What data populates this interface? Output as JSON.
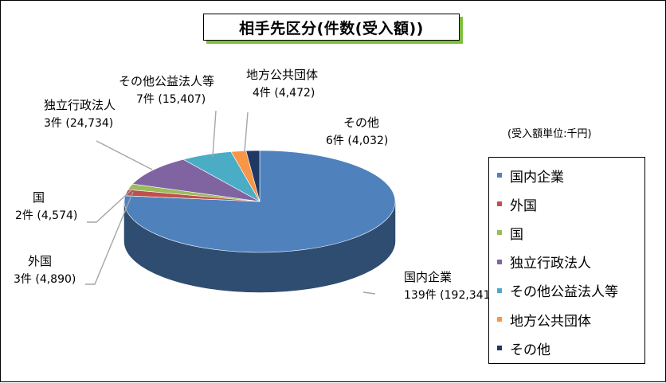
{
  "chart_data": {
    "type": "pie",
    "title": "相手先区分(件数(受入額))",
    "unit_note": "(受入額単位:千円)",
    "legend_position": "right",
    "slices": [
      {
        "name": "国内企業",
        "count_label": "139件 (192,341)",
        "value": 192341,
        "color": "#4f81bd"
      },
      {
        "name": "外国",
        "count_label": "3件 (4,890)",
        "value": 4890,
        "color": "#c0504d"
      },
      {
        "name": "国",
        "count_label": "2件 (4,574)",
        "value": 4574,
        "color": "#9bbb59"
      },
      {
        "name": "独立行政法人",
        "count_label": "3件 (24,734)",
        "value": 24734,
        "color": "#8064a2"
      },
      {
        "name": "その他公益法人等",
        "count_label": "7件 (15,407)",
        "value": 15407,
        "color": "#4bacc6"
      },
      {
        "name": "地方公共団体",
        "count_label": "4件 (4,472)",
        "value": 4472,
        "color": "#f79646"
      },
      {
        "name": "その他",
        "count_label": "6件 (4,032)",
        "value": 4032,
        "color": "#1f3864"
      }
    ]
  }
}
